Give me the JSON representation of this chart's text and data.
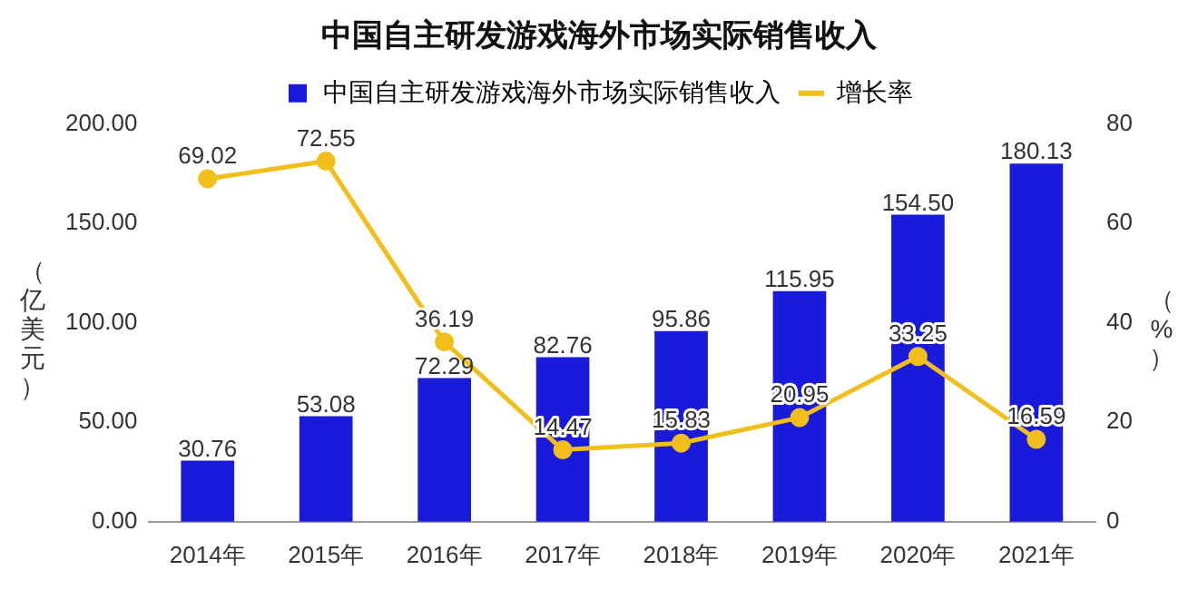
{
  "chart_data": {
    "type": "bar",
    "title": "中国自主研发游戏海外市场实际销售收入",
    "categories": [
      "2014年",
      "2015年",
      "2016年",
      "2017年",
      "2018年",
      "2019年",
      "2020年",
      "2021年"
    ],
    "series": [
      {
        "name": "中国自主研发游戏海外市场实际销售收入",
        "color": "#1a1adb",
        "values": [
          30.76,
          53.08,
          72.29,
          82.76,
          95.86,
          115.95,
          154.5,
          180.13
        ],
        "value_labels": [
          "30.76",
          "53.08",
          "72.29",
          "82.76",
          "95.86",
          "115.95",
          "154.50",
          "180.13"
        ]
      },
      {
        "name": "增长率",
        "type": "line",
        "axis": "y2",
        "color": "#f2be1a",
        "marker": "circle",
        "values": [
          69.02,
          72.55,
          36.19,
          14.47,
          15.83,
          20.95,
          33.25,
          16.59
        ]
      }
    ],
    "ylabel": "（亿美元）",
    "y2label": "（%）",
    "ylim": [
      0,
      200
    ],
    "yticks": [
      {
        "value": 0,
        "label": "0.00"
      },
      {
        "value": 50,
        "label": "50.00"
      },
      {
        "value": 100,
        "label": "100.00"
      },
      {
        "value": 150,
        "label": "150.00"
      },
      {
        "value": 200,
        "label": "200.00"
      }
    ],
    "y2lim": [
      0,
      80
    ],
    "y2ticks": [
      0,
      20,
      40,
      60,
      80
    ],
    "legend": "top",
    "grid": false,
    "data_labels": true
  }
}
